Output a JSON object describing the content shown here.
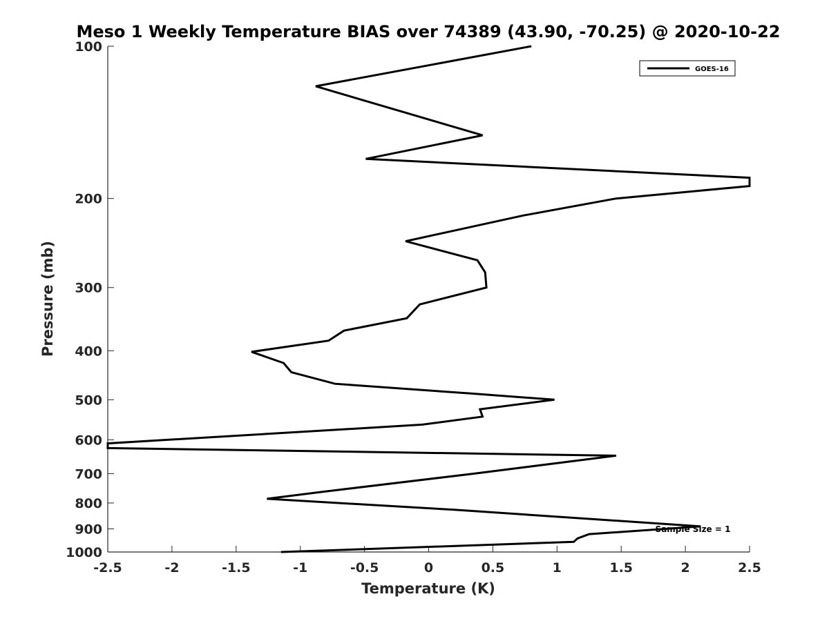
{
  "chart_data": {
    "type": "line",
    "title": "Meso 1 Weekly Temperature BIAS over 74389 (43.90, -70.25) @ 2020-10-22",
    "xlabel": "Temperature (K)",
    "ylabel": "Pressure (mb)",
    "xlim": [
      -2.5,
      2.5
    ],
    "ylim": [
      100,
      1000
    ],
    "y_scale": "log",
    "y_reversed": true,
    "x_ticks": [
      "-2.5",
      "-2",
      "-1.5",
      "-1",
      "-0.5",
      "0",
      "0.5",
      "1",
      "1.5",
      "2",
      "2.5"
    ],
    "y_ticks": [
      "100",
      "200",
      "300",
      "400",
      "500",
      "600",
      "700",
      "800",
      "900",
      "1000"
    ],
    "grid": false,
    "legend_position": "top-right",
    "annotation": "Sample Size = 1",
    "series": [
      {
        "name": "GOES-16",
        "color": "#000000",
        "x": [
          0.8,
          -0.88,
          0.42,
          -0.49,
          2.5,
          2.5,
          1.46,
          0.74,
          -0.18,
          0.38,
          0.44,
          0.45,
          -0.07,
          -0.17,
          -0.66,
          -0.78,
          -1.38,
          -1.13,
          -1.07,
          -0.73,
          0.33,
          0.98,
          0.4,
          0.42,
          -0.05,
          -2.5,
          -2.5,
          1.46,
          0.35,
          -0.82,
          -1.26,
          0.2,
          2.12,
          1.25,
          1.16,
          1.13,
          -1.15
        ],
        "y": [
          100,
          120,
          150,
          167,
          182,
          189,
          200,
          216,
          243,
          265,
          280,
          300,
          324,
          345,
          365,
          382,
          402,
          423,
          441,
          465,
          486,
          500,
          522,
          540,
          560,
          610,
          623,
          645,
          700,
          760,
          785,
          825,
          890,
          922,
          940,
          955,
          1000
        ]
      }
    ]
  }
}
